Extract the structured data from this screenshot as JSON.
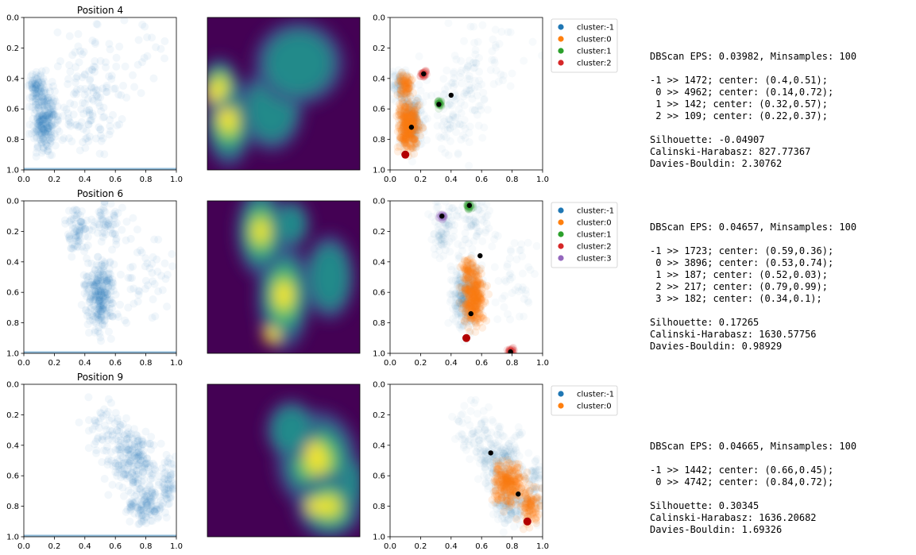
{
  "chart_data": [
    {
      "type": "scatter",
      "title": "Position 4",
      "xlim": [
        0,
        1
      ],
      "ylim": [
        1,
        0
      ],
      "xticks": [
        "0.0",
        "0.2",
        "0.4",
        "0.6",
        "0.8",
        "1.0"
      ],
      "yticks": [
        "0.0",
        "0.2",
        "0.4",
        "0.6",
        "0.8",
        "1.0"
      ],
      "heatmap": {
        "type": "heatmap",
        "colormap": "viridis",
        "hot_spots": [
          [
            0.12,
            0.65
          ],
          [
            0.05,
            0.5
          ]
        ]
      },
      "legend": [
        "cluster:-1",
        "cluster:0",
        "cluster:1",
        "cluster:2"
      ],
      "centers": [
        {
          "label": "-1",
          "x": 0.4,
          "y": 0.51
        },
        {
          "label": "0",
          "x": 0.14,
          "y": 0.72
        },
        {
          "label": "1",
          "x": 0.32,
          "y": 0.57
        },
        {
          "label": "2",
          "x": 0.22,
          "y": 0.37
        }
      ],
      "mode_point": {
        "x": 0.1,
        "y": 0.9
      },
      "stats": [
        "DBScan EPS: 0.03982, Minsamples: 100",
        "",
        "-1 >> 1472; center: (0.4,0.51);",
        " 0 >> 4962; center: (0.14,0.72);",
        " 1 >> 142; center: (0.32,0.57);",
        " 2 >> 109; center: (0.22,0.37);",
        "",
        "Silhouette: -0.04907",
        "Calinski-Harabasz: 827.77367",
        "Davies-Bouldin: 2.30762"
      ]
    },
    {
      "type": "scatter",
      "title": "Position 6",
      "xlim": [
        0,
        1
      ],
      "ylim": [
        1,
        0
      ],
      "xticks": [
        "0.0",
        "0.2",
        "0.4",
        "0.6",
        "0.8",
        "1.0"
      ],
      "yticks": [
        "0.0",
        "0.2",
        "0.4",
        "0.6",
        "0.8",
        "1.0"
      ],
      "heatmap": {
        "type": "heatmap",
        "colormap": "viridis",
        "hot_spots": [
          [
            0.5,
            0.6
          ],
          [
            0.42,
            0.88
          ]
        ]
      },
      "legend": [
        "cluster:-1",
        "cluster:0",
        "cluster:1",
        "cluster:2",
        "cluster:3"
      ],
      "centers": [
        {
          "label": "-1",
          "x": 0.59,
          "y": 0.36
        },
        {
          "label": "0",
          "x": 0.53,
          "y": 0.74
        },
        {
          "label": "1",
          "x": 0.52,
          "y": 0.03
        },
        {
          "label": "2",
          "x": 0.79,
          "y": 0.99
        },
        {
          "label": "3",
          "x": 0.34,
          "y": 0.1
        }
      ],
      "mode_point": {
        "x": 0.5,
        "y": 0.9
      },
      "stats": [
        "DBScan EPS: 0.04657, Minsamples: 100",
        "",
        "-1 >> 1723; center: (0.59,0.36);",
        " 0 >> 3896; center: (0.53,0.74);",
        " 1 >> 187; center: (0.52,0.03);",
        " 2 >> 217; center: (0.79,0.99);",
        " 3 >> 182; center: (0.34,0.1);",
        "",
        "Silhouette: 0.17265",
        "Calinski-Harabasz: 1630.57756",
        "Davies-Bouldin: 0.98929"
      ]
    },
    {
      "type": "scatter",
      "title": "Position 9",
      "xlim": [
        0,
        1
      ],
      "ylim": [
        1,
        0
      ],
      "xticks": [
        "0.0",
        "0.2",
        "0.4",
        "0.6",
        "0.8",
        "1.0"
      ],
      "yticks": [
        "0.0",
        "0.2",
        "0.4",
        "0.6",
        "0.8",
        "1.0"
      ],
      "heatmap": {
        "type": "heatmap",
        "colormap": "viridis",
        "hot_spots": [
          [
            0.7,
            0.43
          ],
          [
            0.7,
            0.8
          ]
        ]
      },
      "legend": [
        "cluster:-1",
        "cluster:0"
      ],
      "centers": [
        {
          "label": "-1",
          "x": 0.66,
          "y": 0.45
        },
        {
          "label": "0",
          "x": 0.84,
          "y": 0.72
        }
      ],
      "mode_point": {
        "x": 0.9,
        "y": 0.9
      },
      "stats": [
        "DBScan EPS: 0.04665, Minsamples: 100",
        "",
        "-1 >> 1442; center: (0.66,0.45);",
        " 0 >> 4742; center: (0.84,0.72);",
        "",
        "Silhouette: 0.30345",
        "Calinski-Harabasz: 1636.20682",
        "Davies-Bouldin: 1.69326"
      ]
    }
  ],
  "colors": {
    "cluster:-1": "#1f77b4",
    "cluster:0": "#ff7f0e",
    "cluster:1": "#2ca02c",
    "cluster:2": "#d62728",
    "cluster:3": "#9467bd",
    "center": "#000000",
    "mode": "#b20000",
    "heatmap_bg": "#440154"
  }
}
